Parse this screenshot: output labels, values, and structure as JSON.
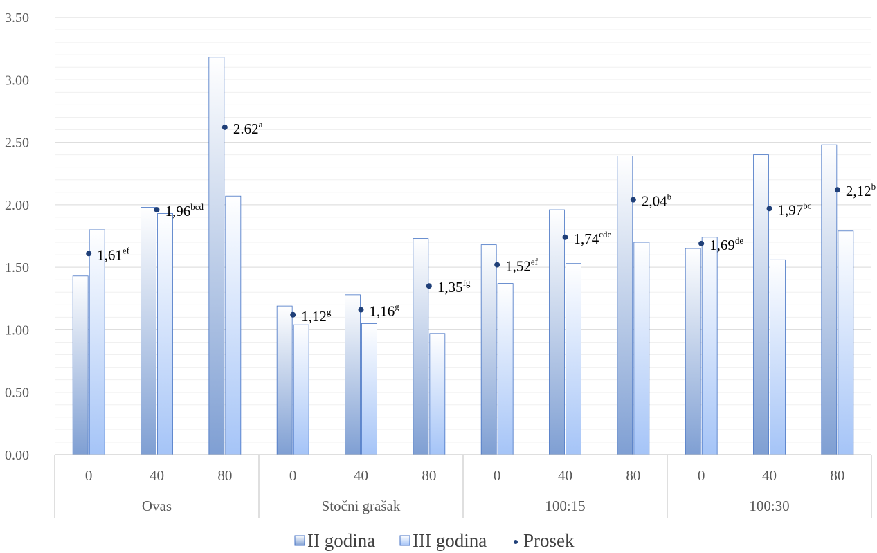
{
  "chart_data": {
    "type": "bar",
    "ylim": [
      0,
      3.5
    ],
    "yticks": [
      "0.00",
      "0.50",
      "1.00",
      "1.50",
      "2.00",
      "2.50",
      "3.00",
      "3.50"
    ],
    "groups": [
      {
        "label": "Ovas",
        "categories": [
          "0",
          "40",
          "80"
        ]
      },
      {
        "label": "Stočni grašak",
        "categories": [
          "0",
          "40",
          "80"
        ]
      },
      {
        "label": "100:15",
        "categories": [
          "0",
          "40",
          "80"
        ]
      },
      {
        "label": "100:30",
        "categories": [
          "0",
          "40",
          "80"
        ]
      }
    ],
    "series": [
      {
        "name": "II godina",
        "type": "bar",
        "values": [
          1.43,
          1.98,
          3.18,
          1.19,
          1.28,
          1.73,
          1.68,
          1.96,
          2.39,
          1.65,
          2.4,
          2.48
        ]
      },
      {
        "name": "III godina",
        "type": "bar",
        "values": [
          1.8,
          1.93,
          2.07,
          1.04,
          1.05,
          0.97,
          1.37,
          1.53,
          1.7,
          1.74,
          1.56,
          1.79
        ]
      },
      {
        "name": "Prosek",
        "type": "point",
        "values": [
          1.61,
          1.96,
          2.62,
          1.12,
          1.16,
          1.35,
          1.52,
          1.74,
          2.04,
          1.69,
          1.97,
          2.12
        ]
      }
    ],
    "point_labels": [
      {
        "value": "1,61",
        "sup": "ef"
      },
      {
        "value": "1,96",
        "sup": "bcd"
      },
      {
        "value": "2.62",
        "sup": "a"
      },
      {
        "value": "1,12",
        "sup": "g"
      },
      {
        "value": "1,16",
        "sup": "g"
      },
      {
        "value": "1,35",
        "sup": "fg"
      },
      {
        "value": "1,52",
        "sup": "ef"
      },
      {
        "value": "1,74",
        "sup": "cde"
      },
      {
        "value": "2,04",
        "sup": "b"
      },
      {
        "value": "1,69",
        "sup": "de"
      },
      {
        "value": "1,97",
        "sup": "bc"
      },
      {
        "value": "2,12",
        "sup": "b"
      }
    ],
    "grid": true,
    "minor_grid": true,
    "legend_position": "bottom",
    "colors": {
      "bar1_top": "#ffffff",
      "bar1_bottom": "#7f9fd3",
      "bar2_top": "#ffffff",
      "bar2_bottom": "#a5c4f7",
      "bar_stroke": "#4472c4",
      "point": "#1f3f78",
      "grid": "#d9d9d9",
      "axis": "#bfbfbf"
    }
  }
}
